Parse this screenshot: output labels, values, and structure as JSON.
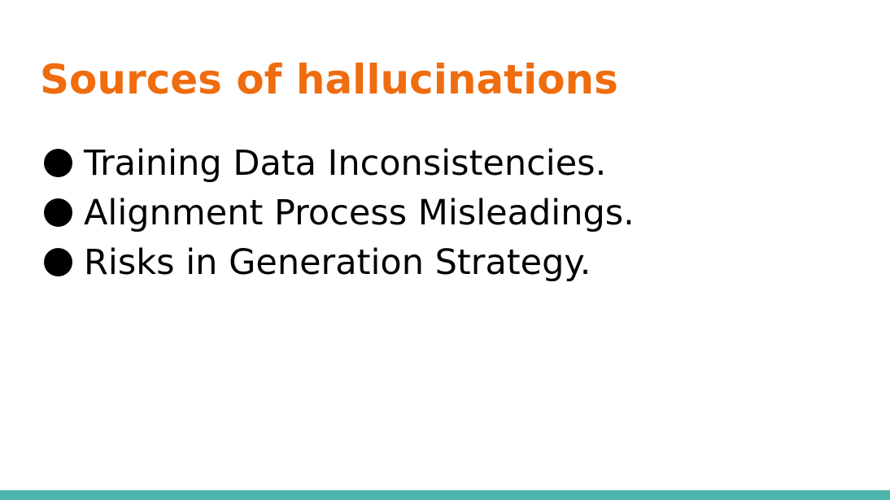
{
  "slide": {
    "title": "Sources of hallucinations",
    "bullets": [
      "Training Data Inconsistencies.",
      "Alignment Process Misleadings.",
      "Risks in Generation Strategy."
    ]
  },
  "colors": {
    "title": "#ef6c0f",
    "text": "#000000",
    "accent_bar": "#4db6ac",
    "background": "#ffffff"
  }
}
